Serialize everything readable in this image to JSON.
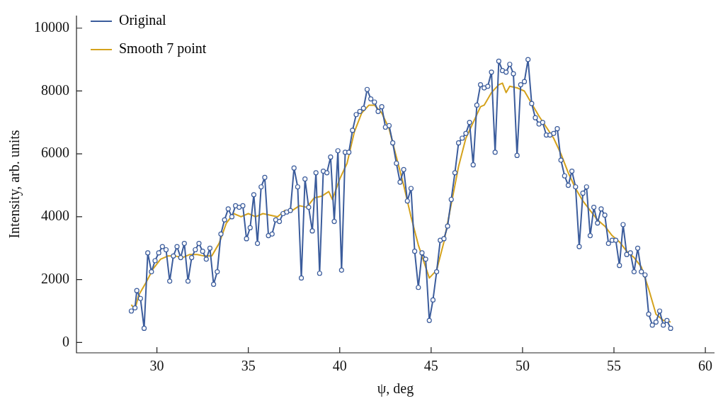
{
  "chart_data": {
    "type": "line",
    "xlabel": "ψ, deg",
    "ylabel": "Intensity, arb. units",
    "xlim": [
      25.6,
      60.5
    ],
    "xticks": [
      30,
      35,
      40,
      45,
      50,
      55,
      60
    ],
    "ylim": [
      -330,
      10400
    ],
    "yticks": [
      0,
      2000,
      4000,
      6000,
      8000,
      10000
    ],
    "grid": false,
    "legend": "top left",
    "line_style": "solid",
    "series": [
      {
        "name": "Original",
        "color": "#3b5c9c",
        "marker": "circle",
        "x": [
          28.6,
          28.8,
          28.9,
          29.1,
          29.3,
          29.5,
          29.7,
          29.9,
          30.1,
          30.3,
          30.5,
          30.7,
          30.9,
          31.1,
          31.3,
          31.5,
          31.7,
          31.9,
          32.1,
          32.3,
          32.5,
          32.7,
          32.9,
          33.1,
          33.3,
          33.5,
          33.7,
          33.9,
          34.1,
          34.3,
          34.5,
          34.7,
          34.9,
          35.1,
          35.3,
          35.5,
          35.7,
          35.9,
          36.1,
          36.3,
          36.5,
          36.7,
          36.9,
          37.1,
          37.3,
          37.5,
          37.7,
          37.9,
          38.1,
          38.3,
          38.5,
          38.7,
          38.9,
          39.1,
          39.3,
          39.5,
          39.7,
          39.9,
          40.1,
          40.3,
          40.5,
          40.7,
          40.9,
          41.1,
          41.3,
          41.5,
          41.7,
          41.9,
          42.1,
          42.3,
          42.5,
          42.7,
          42.9,
          43.1,
          43.3,
          43.5,
          43.7,
          43.9,
          44.1,
          44.3,
          44.5,
          44.7,
          44.9,
          45.1,
          45.3,
          45.5,
          45.7,
          45.9,
          46.1,
          46.3,
          46.5,
          46.7,
          46.9,
          47.1,
          47.3,
          47.5,
          47.7,
          47.9,
          48.1,
          48.3,
          48.5,
          48.7,
          48.9,
          49.1,
          49.3,
          49.5,
          49.7,
          49.9,
          50.1,
          50.3,
          50.5,
          50.7,
          50.9,
          51.1,
          51.3,
          51.5,
          51.7,
          51.9,
          52.1,
          52.3,
          52.5,
          52.7,
          52.9,
          53.1,
          53.3,
          53.5,
          53.7,
          53.9,
          54.1,
          54.3,
          54.5,
          54.7,
          54.9,
          55.1,
          55.3,
          55.5,
          55.7,
          55.9,
          56.1,
          56.3,
          56.5,
          56.7,
          56.9,
          57.1,
          57.3,
          57.5,
          57.7,
          57.9,
          58.1
        ],
        "values": [
          1000,
          1100,
          1650,
          1400,
          450,
          2850,
          2250,
          2600,
          2850,
          3050,
          2950,
          1950,
          2750,
          3050,
          2700,
          3150,
          1950,
          2700,
          2950,
          3150,
          2900,
          2650,
          3000,
          1850,
          2250,
          3450,
          3900,
          4250,
          4000,
          4350,
          4300,
          4350,
          3300,
          3650,
          4700,
          3150,
          4950,
          5250,
          3400,
          3450,
          3900,
          3850,
          4100,
          4150,
          4200,
          5550,
          4950,
          2050,
          5200,
          4300,
          3550,
          5400,
          2200,
          5450,
          5400,
          5900,
          3850,
          6100,
          2300,
          6050,
          6050,
          6750,
          7250,
          7350,
          7450,
          8050,
          7750,
          7650,
          7350,
          7500,
          6850,
          6900,
          6350,
          5700,
          5100,
          5500,
          4500,
          4900,
          2900,
          1750,
          2850,
          2650,
          700,
          1350,
          2250,
          3250,
          3300,
          3700,
          4550,
          5400,
          6350,
          6500,
          6650,
          7000,
          5650,
          7550,
          8200,
          8100,
          8150,
          8600,
          6050,
          8950,
          8650,
          8600,
          8850,
          8550,
          5950,
          8200,
          8300,
          9000,
          7600,
          7150,
          6950,
          7000,
          6600,
          6600,
          6650,
          6800,
          5800,
          5300,
          5000,
          5450,
          4950,
          3050,
          4750,
          4950,
          3400,
          4300,
          3800,
          4250,
          4050,
          3150,
          3250,
          3250,
          2450,
          3750,
          2800,
          2850,
          2250,
          3000,
          2250,
          2150,
          900,
          550,
          650,
          1000,
          550,
          700,
          450
        ]
      },
      {
        "name": "Smooth 7 point",
        "color": "#d4a21c",
        "marker": "none",
        "x": [
          28.6,
          28.8,
          29.0,
          29.4,
          29.8,
          30.2,
          30.6,
          31.0,
          31.4,
          31.8,
          32.2,
          32.6,
          33.0,
          33.4,
          33.8,
          34.2,
          34.6,
          35.0,
          35.4,
          35.8,
          36.2,
          36.6,
          37.0,
          37.4,
          37.8,
          38.2,
          38.6,
          39.0,
          39.4,
          39.6,
          40.0,
          40.4,
          40.8,
          41.2,
          41.6,
          41.9,
          42.3,
          42.7,
          43.1,
          43.5,
          43.9,
          44.3,
          44.7,
          44.9,
          45.3,
          45.7,
          46.1,
          46.5,
          46.9,
          47.3,
          47.7,
          47.9,
          48.3,
          48.7,
          48.9,
          49.1,
          49.3,
          49.7,
          50.1,
          50.5,
          50.9,
          51.3,
          51.7,
          52.1,
          52.5,
          52.9,
          53.3,
          53.7,
          54.1,
          54.5,
          54.9,
          55.3,
          55.7,
          56.1,
          56.5,
          56.9,
          57.3,
          57.7,
          58.1
        ],
        "values": [
          1200,
          1050,
          1500,
          1900,
          2350,
          2650,
          2750,
          2750,
          2700,
          2800,
          2800,
          2750,
          2750,
          3150,
          3800,
          4100,
          4000,
          4100,
          4000,
          4100,
          4050,
          4000,
          4200,
          4200,
          4350,
          4300,
          4600,
          4650,
          4800,
          4550,
          5200,
          5700,
          6700,
          7300,
          7550,
          7550,
          7300,
          6800,
          5900,
          5000,
          4000,
          3100,
          2400,
          2050,
          2300,
          3200,
          4400,
          5600,
          6500,
          7000,
          7500,
          7550,
          7950,
          8200,
          8250,
          7950,
          8150,
          8100,
          8000,
          7600,
          7200,
          6850,
          6500,
          6000,
          5400,
          4900,
          4500,
          4200,
          3900,
          3700,
          3400,
          3200,
          2900,
          2700,
          2400,
          1700,
          900,
          700,
          650
        ]
      }
    ]
  }
}
